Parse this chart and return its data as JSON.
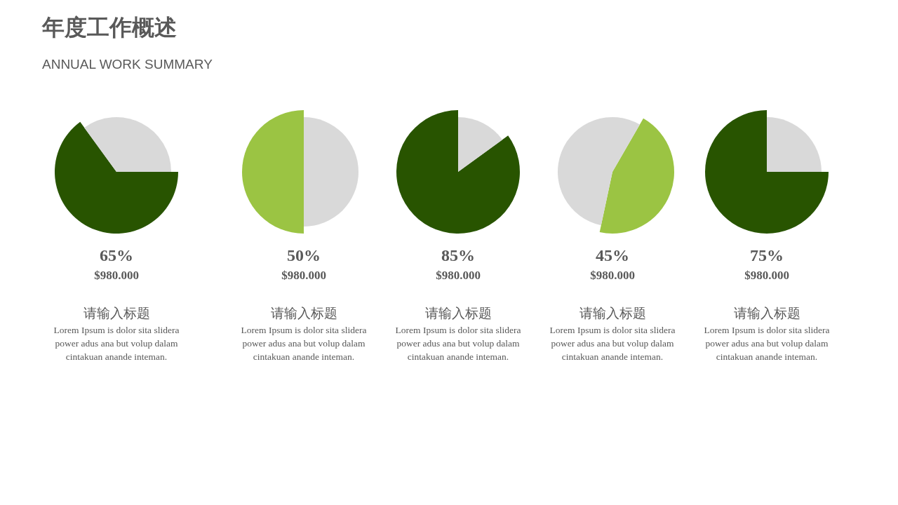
{
  "chart_data": [
    {
      "type": "pie",
      "title": "年度工作概述",
      "subtitle": "ANNUAL  WORK SUMMARY",
      "categories": [
        null,
        null
      ],
      "values": [
        65,
        35
      ],
      "colors": [
        "#285400",
        "#d9d9d9"
      ],
      "value_labels": [
        "65%",
        null
      ],
      "annotations": [
        "$980.000",
        "请输入标题",
        "Lorem Ipsum is dolor sita slidera power adus ana but volup dalam cintakuan anande inteman."
      ]
    },
    {
      "type": "pie",
      "categories": [
        null,
        null
      ],
      "values": [
        50,
        50
      ],
      "colors": [
        "#9bc443",
        "#d9d9d9"
      ],
      "value_labels": [
        "50%",
        null
      ],
      "annotations": [
        "$980.000",
        "请输入标题",
        "Lorem Ipsum is dolor sita slidera power adus ana but volup dalam cintakuan anande inteman."
      ]
    },
    {
      "type": "pie",
      "categories": [
        null,
        null
      ],
      "values": [
        85,
        15
      ],
      "colors": [
        "#285400",
        "#d9d9d9"
      ],
      "value_labels": [
        "85%",
        null
      ],
      "annotations": [
        "$980.000",
        "请输入标题",
        "Lorem Ipsum is dolor sita slidera power adus ana but volup dalam cintakuan anande inteman."
      ]
    },
    {
      "type": "pie",
      "categories": [
        null,
        null
      ],
      "values": [
        45,
        55
      ],
      "colors": [
        "#9bc443",
        "#d9d9d9"
      ],
      "value_labels": [
        "45%",
        null
      ],
      "annotations": [
        "$980.000",
        "请输入标题",
        "Lorem Ipsum is dolor sita slidera power adus ana but volup dalam cintakuan anande inteman."
      ]
    },
    {
      "type": "pie",
      "categories": [
        null,
        null
      ],
      "values": [
        75,
        25
      ],
      "colors": [
        "#285400",
        "#d9d9d9"
      ],
      "value_labels": [
        "75%",
        null
      ],
      "annotations": [
        "$980.000",
        "请输入标题",
        "Lorem Ipsum is dolor sita slidera power adus ana but volup dalam cintakuan anande inteman."
      ]
    }
  ]
}
